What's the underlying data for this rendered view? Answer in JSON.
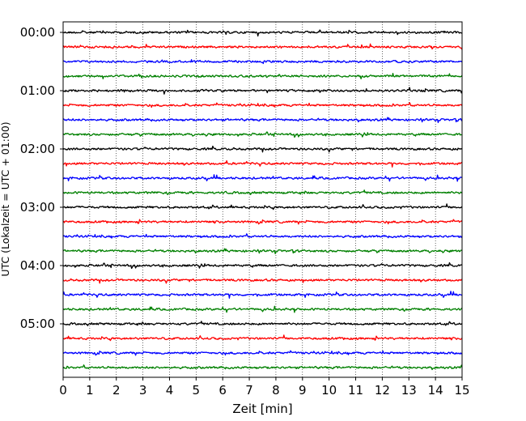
{
  "chart_data": {
    "type": "line",
    "title": "",
    "xlabel": "Zeit  [min]",
    "ylabel": "UTC (Lokalzeit = UTC + 01:00)",
    "xlim": [
      0,
      15
    ],
    "x_ticks": [
      "0",
      "1",
      "2",
      "3",
      "4",
      "5",
      "6",
      "7",
      "8",
      "9",
      "10",
      "11",
      "12",
      "13",
      "14",
      "15"
    ],
    "y_ticks": [
      "00:00",
      "01:00",
      "02:00",
      "03:00",
      "04:00",
      "05:00"
    ],
    "grid": "vertical dotted at each minute",
    "trace_interval_minutes": 15,
    "trace_start_times": [
      "00:00",
      "00:15",
      "00:30",
      "00:45",
      "01:00",
      "01:15",
      "01:30",
      "01:45",
      "02:00",
      "02:15",
      "02:30",
      "02:45",
      "03:00",
      "03:15",
      "03:30",
      "03:45",
      "04:00",
      "04:15",
      "04:30",
      "04:45",
      "05:00",
      "05:15",
      "05:30",
      "05:45"
    ],
    "trace_color_cycle": [
      "#000000",
      "#ff0000",
      "#0000ff",
      "#008000"
    ]
  }
}
